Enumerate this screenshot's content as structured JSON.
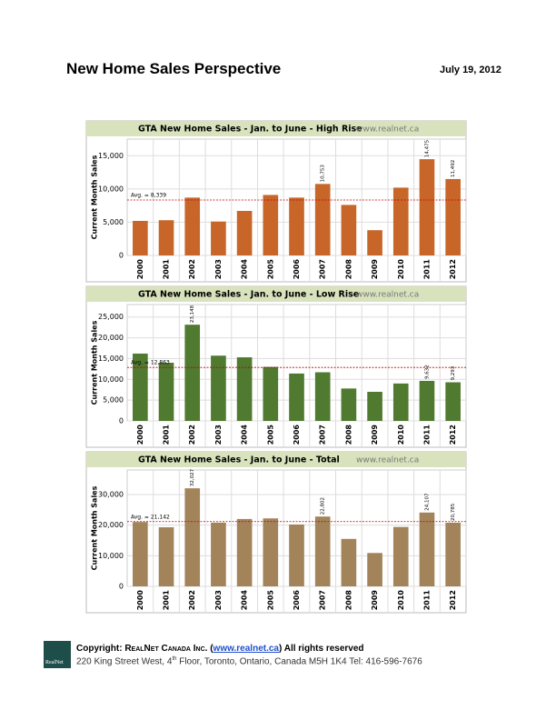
{
  "header": {
    "title": "New Home Sales Perspective",
    "date": "July 19, 2012"
  },
  "chart_data": [
    {
      "type": "bar",
      "title": "GTA New Home Sales - Jan. to June - High Rise",
      "source": "www.realnet.ca",
      "y_label": "Current Month Sales",
      "categories": [
        "2000",
        "2001",
        "2002",
        "2003",
        "2004",
        "2005",
        "2006",
        "2007",
        "2008",
        "2009",
        "2010",
        "2011",
        "2012"
      ],
      "values": [
        5200,
        5300,
        8700,
        5100,
        6700,
        9100,
        8700,
        10753,
        7600,
        3800,
        10200,
        14475,
        11492
      ],
      "value_labels": [
        null,
        null,
        null,
        null,
        null,
        null,
        null,
        "10,753",
        null,
        null,
        null,
        "14,475",
        "11,492"
      ],
      "color": "#c8662a",
      "ylim": [
        0,
        17500
      ],
      "yticks": [
        0,
        {
          "value": 5000,
          "label": "5,000"
        },
        {
          "value": 10000,
          "label": "10,000"
        },
        {
          "value": 15000,
          "label": "15,000"
        }
      ],
      "avg": {
        "value": 8339,
        "label": "Avg. = 8,339"
      },
      "grid": true
    },
    {
      "type": "bar",
      "title": "GTA New Home Sales - Jan. to June - Low Rise",
      "source": "www.realnet.ca",
      "y_label": "Current Month Sales",
      "categories": [
        "2000",
        "2001",
        "2002",
        "2003",
        "2004",
        "2005",
        "2006",
        "2007",
        "2008",
        "2009",
        "2010",
        "2011",
        "2012"
      ],
      "values": [
        16200,
        14000,
        23148,
        15700,
        15300,
        13000,
        11400,
        11700,
        7800,
        7000,
        9000,
        9632,
        9293
      ],
      "value_labels": [
        null,
        null,
        "23,148",
        null,
        null,
        null,
        null,
        null,
        null,
        null,
        null,
        "9,632",
        "9,293"
      ],
      "color": "#4f7a2f",
      "ylim": [
        0,
        28000
      ],
      "yticks": [
        0,
        {
          "value": 5000,
          "label": "5,000"
        },
        {
          "value": 10000,
          "label": "10,000"
        },
        {
          "value": 15000,
          "label": "15,000"
        },
        {
          "value": 20000,
          "label": "20,000"
        },
        {
          "value": 25000,
          "label": "25,000"
        }
      ],
      "avg": {
        "value": 12863,
        "label": "Avg. = 12,863"
      },
      "grid": true
    },
    {
      "type": "bar",
      "title": "GTA New Home Sales - Jan. to June - Total",
      "source": "www.realnet.ca",
      "y_label": "Current Month Sales",
      "categories": [
        "2000",
        "2001",
        "2002",
        "2003",
        "2004",
        "2005",
        "2006",
        "2007",
        "2008",
        "2009",
        "2010",
        "2011",
        "2012"
      ],
      "values": [
        21000,
        19300,
        32027,
        20800,
        22000,
        22200,
        20200,
        22802,
        15500,
        10900,
        19400,
        24107,
        20785
      ],
      "value_labels": [
        null,
        null,
        "32,027",
        null,
        null,
        null,
        null,
        "22,802",
        null,
        null,
        null,
        "24,107",
        "20,785"
      ],
      "color": "#a3845a",
      "ylim": [
        0,
        38000
      ],
      "yticks": [
        0,
        {
          "value": 10000,
          "label": "10,000"
        },
        {
          "value": 20000,
          "label": "20,000"
        },
        {
          "value": 30000,
          "label": "30,000"
        }
      ],
      "avg": {
        "value": 21142,
        "label": "Avg. = 21,142"
      },
      "grid": true
    }
  ],
  "footer": {
    "logo": "RealNet",
    "copyright": "Copyright: ",
    "company": "RealNet Canada Inc.",
    "open": " (",
    "link": "www.realnet.ca",
    "close": ") All rights reserved",
    "address_a": "220 King Street West, 4",
    "address_sup": "th",
    "address_b": " Floor, Toronto, Ontario, Canada M5H 1K4 Tel: 416-596-7676"
  }
}
